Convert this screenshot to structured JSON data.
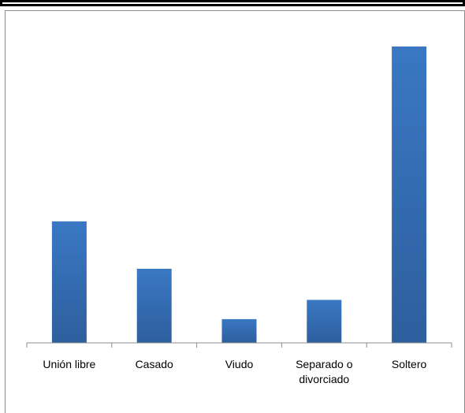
{
  "chart_data": {
    "type": "bar",
    "categories": [
      "Unión libre",
      "Casado",
      "Viudo",
      "Separado o divorciado",
      "Soltero"
    ],
    "category_lines": [
      [
        "Unión libre"
      ],
      [
        "Casado"
      ],
      [
        "Viudo"
      ],
      [
        "Separado o",
        "divorciado"
      ],
      [
        "Soltero"
      ]
    ],
    "values": [
      41,
      25,
      8,
      14.5,
      100
    ],
    "ylim": [
      0,
      100
    ],
    "grid": false,
    "legend": "none",
    "title": "",
    "xlabel": "",
    "ylabel": "",
    "bar_color": "#3a78c3",
    "bar_color_dark": "#2d5f9e",
    "axis_color": "#8c8c8c"
  }
}
